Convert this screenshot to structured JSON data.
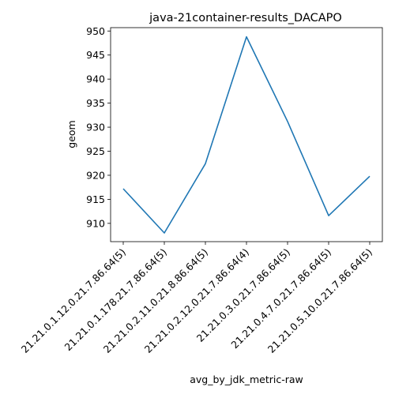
{
  "chart_data": {
    "type": "line",
    "title": "java-21container-results_DACAPO",
    "xlabel": "avg_by_jdk_metric-raw",
    "ylabel": "geom",
    "categories": [
      "21.21.0.1.12.0.21.7.86.64(5)",
      "21.21.0.1.178.21.7.86.64(5)",
      "21.21.0.2.11.0.21.8.86.64(5)",
      "21.21.0.2.12.0.21.7.86.64(4)",
      "21.21.0.3.0.21.7.86.64(5)",
      "21.21.0.4.7.0.21.7.86.64(5)",
      "21.21.0.5.10.0.21.7.86.64(5)"
    ],
    "series": [
      {
        "values": [
          917.2,
          908.0,
          922.4,
          948.8,
          931.2,
          911.6,
          919.8
        ],
        "color": "#1f77b4"
      }
    ],
    "ylim": [
      906.2,
      950.7
    ],
    "yticks": [
      910,
      915,
      920,
      925,
      930,
      935,
      940,
      945,
      950
    ],
    "grid": false,
    "legend": "none"
  }
}
